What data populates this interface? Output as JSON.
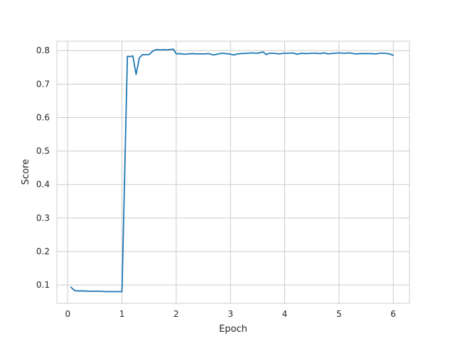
{
  "chart_data": {
    "type": "line",
    "title": "",
    "xlabel": "Epoch",
    "ylabel": "Score",
    "xlim": [
      -0.2,
      6.3
    ],
    "ylim": [
      0.045,
      0.828
    ],
    "xticks": [
      0,
      1,
      2,
      3,
      4,
      5,
      6
    ],
    "yticks": [
      0.1,
      0.2,
      0.3,
      0.4,
      0.5,
      0.6,
      0.7,
      0.8
    ],
    "grid": true,
    "legend": "none",
    "series": [
      {
        "color": "#1f77b4",
        "x": [
          0.06,
          0.13,
          0.2,
          0.3,
          0.4,
          0.5,
          0.6,
          0.7,
          0.8,
          0.9,
          1.0,
          1.1,
          1.15,
          1.2,
          1.26,
          1.32,
          1.38,
          1.43,
          1.5,
          1.58,
          1.64,
          1.7,
          1.76,
          1.82,
          1.88,
          1.95,
          2.0,
          2.07,
          2.15,
          2.22,
          2.3,
          2.38,
          2.45,
          2.53,
          2.6,
          2.68,
          2.75,
          2.83,
          2.9,
          2.98,
          3.06,
          3.13,
          3.2,
          3.3,
          3.4,
          3.5,
          3.6,
          3.66,
          3.72,
          3.8,
          3.9,
          3.98,
          4.05,
          4.15,
          4.23,
          4.3,
          4.4,
          4.5,
          4.58,
          4.65,
          4.73,
          4.8,
          4.9,
          5.0,
          5.1,
          5.2,
          5.3,
          5.4,
          5.5,
          5.6,
          5.68,
          5.75,
          5.85,
          5.93,
          6.0
        ],
        "y": [
          0.093,
          0.083,
          0.082,
          0.082,
          0.081,
          0.081,
          0.081,
          0.08,
          0.08,
          0.08,
          0.08,
          0.783,
          0.782,
          0.784,
          0.729,
          0.778,
          0.788,
          0.788,
          0.788,
          0.8,
          0.803,
          0.802,
          0.803,
          0.802,
          0.803,
          0.804,
          0.79,
          0.791,
          0.789,
          0.79,
          0.791,
          0.79,
          0.79,
          0.79,
          0.791,
          0.787,
          0.789,
          0.792,
          0.791,
          0.79,
          0.787,
          0.79,
          0.791,
          0.792,
          0.793,
          0.792,
          0.796,
          0.788,
          0.792,
          0.792,
          0.79,
          0.792,
          0.792,
          0.793,
          0.789,
          0.792,
          0.791,
          0.792,
          0.792,
          0.791,
          0.793,
          0.79,
          0.792,
          0.793,
          0.792,
          0.793,
          0.79,
          0.791,
          0.791,
          0.791,
          0.79,
          0.792,
          0.792,
          0.79,
          0.786
        ]
      }
    ]
  }
}
